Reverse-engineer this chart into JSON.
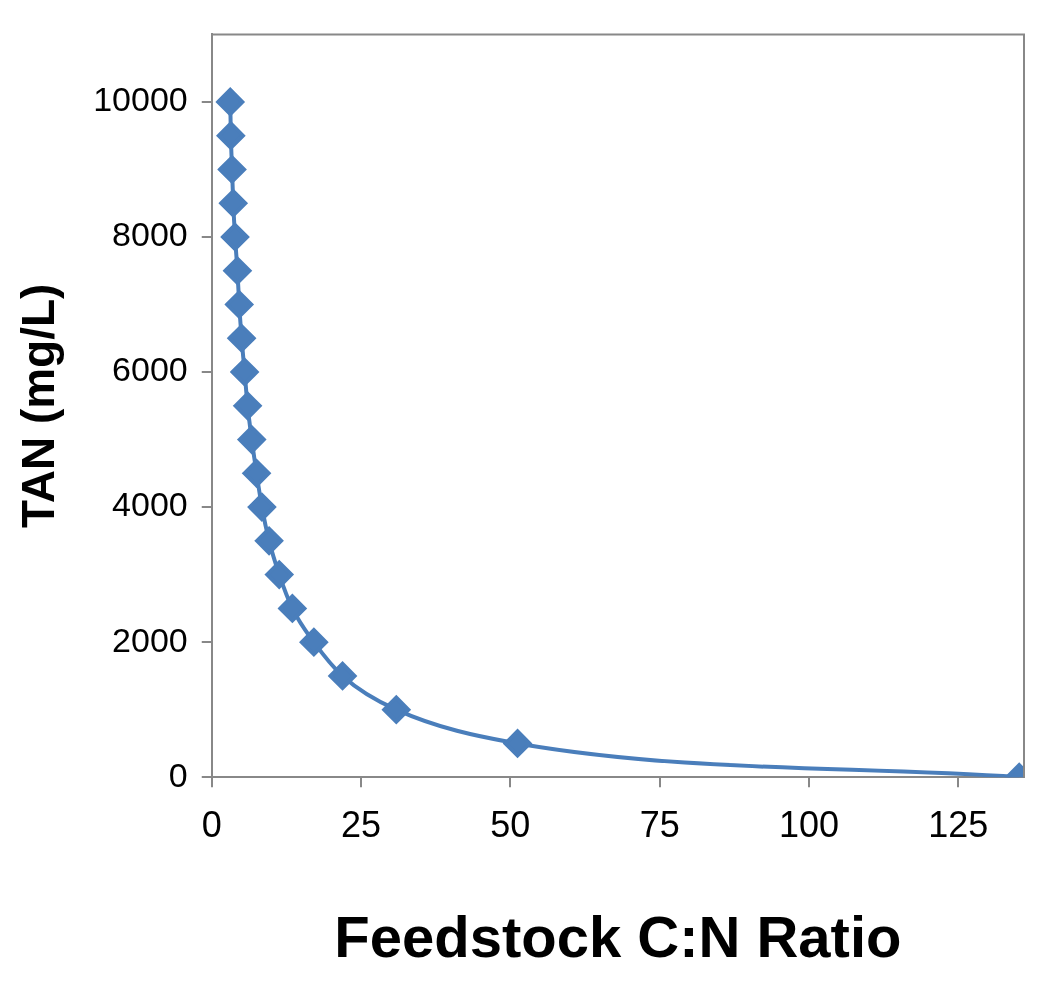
{
  "chart_data": {
    "type": "line",
    "xlabel": "Feedstock C:N Ratio",
    "ylabel": "TAN (mg/L)",
    "xlim": [
      0,
      136
    ],
    "xticks": [
      0,
      25,
      50,
      75,
      100,
      125
    ],
    "ylim": [
      0,
      11000
    ],
    "yticks": [
      0,
      2000,
      4000,
      6000,
      8000,
      10000
    ],
    "grid": false,
    "legend": false,
    "marker": "diamond",
    "line_style": "solid",
    "series": [
      {
        "color": "#4a7ebb",
        "x": [
          3.1,
          3.2,
          3.4,
          3.6,
          3.9,
          4.3,
          4.6,
          5.0,
          5.5,
          6.0,
          6.7,
          7.5,
          8.4,
          9.6,
          11.3,
          13.5,
          17.1,
          21.9,
          30.9,
          51.2,
          135.2
        ],
        "values": [
          10000,
          9500,
          9000,
          8500,
          8000,
          7500,
          7000,
          6500,
          6000,
          5500,
          5000,
          4500,
          4000,
          3500,
          3000,
          2500,
          2000,
          1500,
          1000,
          500,
          0
        ]
      }
    ]
  }
}
